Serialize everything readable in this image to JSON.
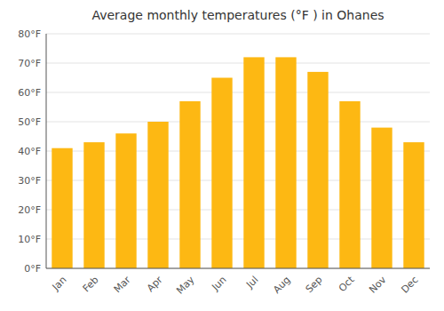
{
  "chart_data": {
    "type": "bar",
    "title": "Average monthly temperatures (°F ) in Ohanes",
    "categories": [
      "Jan",
      "Feb",
      "Mar",
      "Apr",
      "May",
      "Jun",
      "Jul",
      "Aug",
      "Sep",
      "Oct",
      "Nov",
      "Dec"
    ],
    "values": [
      41.0,
      43.0,
      46.0,
      50.0,
      57.0,
      65.0,
      72.0,
      72.0,
      67.0,
      57.0,
      48.0,
      43.0
    ],
    "color": "#FDB813",
    "ylim": [
      0,
      80
    ],
    "yticks": [
      {
        "value": 0,
        "label": "0°F"
      },
      {
        "value": 10,
        "label": "10°F"
      },
      {
        "value": 20,
        "label": "20°F"
      },
      {
        "value": 30,
        "label": "30°F"
      },
      {
        "value": 40,
        "label": "40°F"
      },
      {
        "value": 50,
        "label": "50°F"
      },
      {
        "value": 60,
        "label": "60°F"
      },
      {
        "value": 70,
        "label": "70°F"
      },
      {
        "value": 80,
        "label": "80°F"
      }
    ],
    "grid": true
  }
}
